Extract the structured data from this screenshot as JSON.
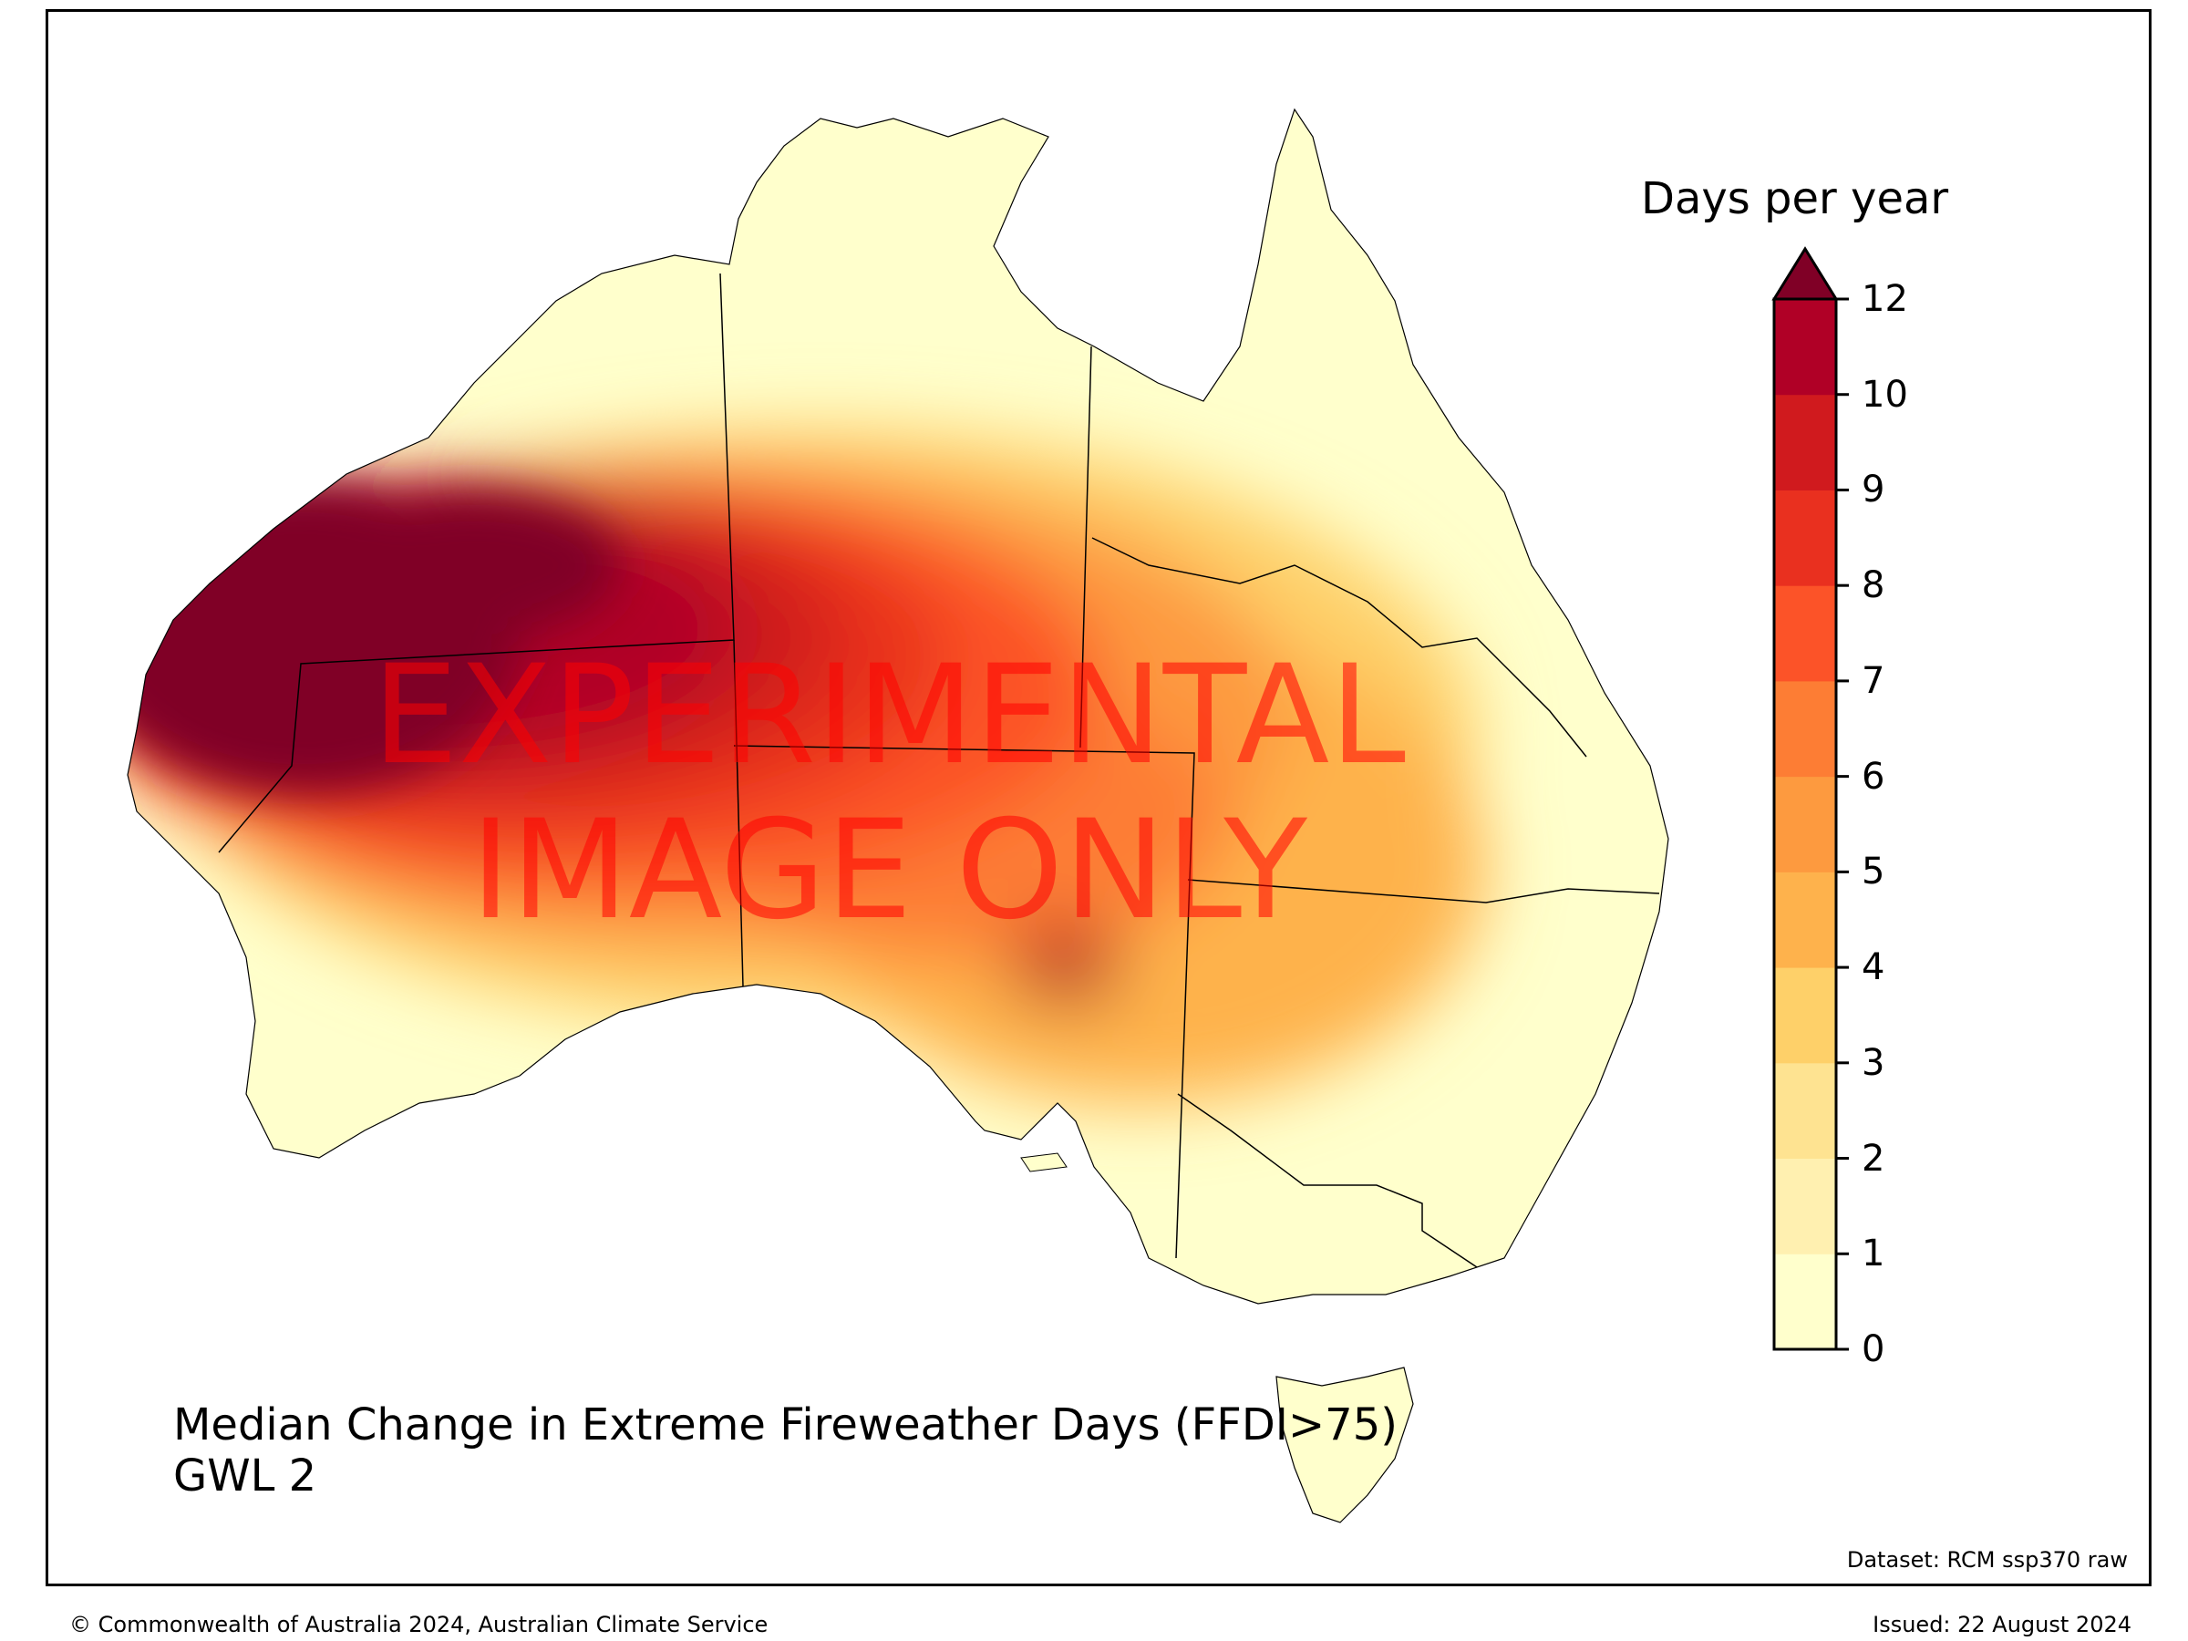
{
  "map": {
    "title_line1": "Median Change in Extreme Fireweather Days (FFDI>75)",
    "title_line2": "GWL 2",
    "dataset": "Dataset: RCM ssp370 raw",
    "watermark_line1": "EXPERIMENTAL",
    "watermark_line2": "IMAGE ONLY"
  },
  "legend": {
    "title": "Days per year",
    "ticks": [
      "0",
      "1",
      "2",
      "3",
      "4",
      "5",
      "6",
      "7",
      "8",
      "9",
      "10",
      "12"
    ],
    "colors": [
      "#ffffcc",
      "#fff0b0",
      "#fee391",
      "#fed069",
      "#feb24c",
      "#fd9a3f",
      "#fd7d34",
      "#fc5328",
      "#e9301f",
      "#d01a1e",
      "#b00026",
      "#800026"
    ]
  },
  "footer": {
    "copyright": "© Commonwealth of Australia 2024, Australian Climate Service",
    "issued": "Issued: 22 August 2024"
  }
}
